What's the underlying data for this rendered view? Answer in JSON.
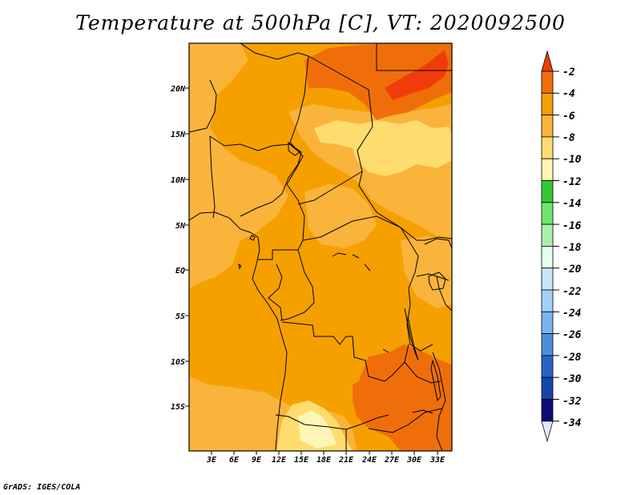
{
  "title": "Temperature at 500hPa [C], VT: 2020092500",
  "credit": "GrADS: IGES/COLA",
  "map": {
    "lat_labels": [
      "20N",
      "15N",
      "10N",
      "5N",
      "EQ",
      "5S",
      "10S",
      "15S"
    ],
    "lon_labels": [
      "3E",
      "6E",
      "9E",
      "12E",
      "15E",
      "18E",
      "21E",
      "24E",
      "27E",
      "30E",
      "33E"
    ]
  },
  "colorbar": {
    "labels": [
      "-2",
      "-4",
      "-6",
      "-8",
      "-10",
      "-12",
      "-14",
      "-16",
      "-18",
      "-20",
      "-22",
      "-24",
      "-26",
      "-28",
      "-30",
      "-32",
      "-34"
    ],
    "colors": [
      "#f03c0a",
      "#f06e0a",
      "#f5a000",
      "#fab43c",
      "#ffdc6e",
      "#fff5b4",
      "#32c832",
      "#6ee66e",
      "#aaf0aa",
      "#e6fff0",
      "#c8e6fa",
      "#a0d2fa",
      "#78b4f0",
      "#508cdc",
      "#2864c8",
      "#1446aa",
      "#0a0a78",
      "#e6e6fa"
    ]
  },
  "colors": {
    "base": "#f5a000",
    "warm": "#f06e0a",
    "warmest": "#f03c0a",
    "cool": "#fab43c",
    "coolest": "#ffdc6e",
    "pale": "#fff5b4"
  }
}
